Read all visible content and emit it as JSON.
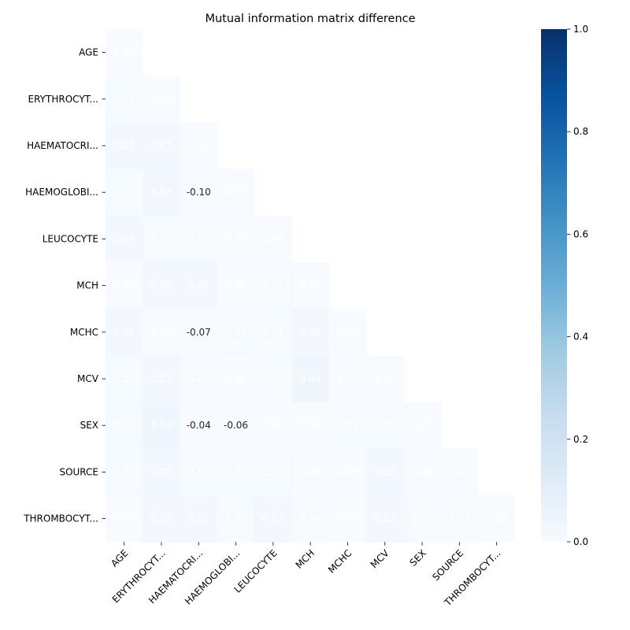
{
  "chart_data": {
    "type": "heatmap",
    "title": "Mutual information matrix difference",
    "rows": [
      "AGE",
      "ERYTHROCYT...",
      "HAEMATOCRI...",
      "HAEMOGLOBI...",
      "LEUCOCYTE",
      "MCH",
      "MCHC",
      "MCV",
      "SEX",
      "SOURCE",
      "THROMBOCYT..."
    ],
    "cols": [
      "AGE",
      "ERYTHROCYT...",
      "HAEMATOCRI...",
      "HAEMOGLOBI...",
      "LEUCOCYTE",
      "MCH",
      "MCHC",
      "MCV",
      "SEX",
      "SOURCE",
      "THROMBOCYT..."
    ],
    "mask": "upper-triangle",
    "values": [
      [
        "0.00"
      ],
      [
        "0.01",
        "0.00"
      ],
      [
        "0.02",
        "0.02",
        "0.00"
      ],
      [
        "0.01",
        "0.03",
        "-0.10",
        "0.00"
      ],
      [
        "0.02",
        "0.01",
        "0.01",
        "0.00",
        "0.00"
      ],
      [
        "0.00",
        "0.02",
        "0.02",
        "0.00",
        "0.01",
        "0.00"
      ],
      [
        "0.02",
        "0.00",
        "-0.07",
        "0.01",
        "0.01",
        "0.02",
        "0.00"
      ],
      [
        "0.01",
        "0.02",
        "0.01",
        "0.00",
        "0.01",
        "0.04",
        "0.00",
        "0.00"
      ],
      [
        "0.01",
        "0.04",
        "-0.04",
        "-0.06",
        "0.00",
        "0.00",
        "0.01",
        "0.01",
        "0.00"
      ],
      [
        "0.01",
        "0.02",
        "0.01",
        "0.01",
        "0.01",
        "0.00",
        "0.00",
        "0.02",
        "0.00",
        "0.00"
      ],
      [
        "0.00",
        "0.02",
        "0.02",
        "0.01",
        "0.02",
        "0.01",
        "0.00",
        "0.02",
        "0.01",
        "0.01",
        "0.00"
      ]
    ],
    "colorbar": {
      "colormap": "Blues",
      "min": 0.0,
      "max": 1.0,
      "ticks": [
        "0.0",
        "0.2",
        "0.4",
        "0.6",
        "0.8",
        "1.0"
      ]
    }
  }
}
